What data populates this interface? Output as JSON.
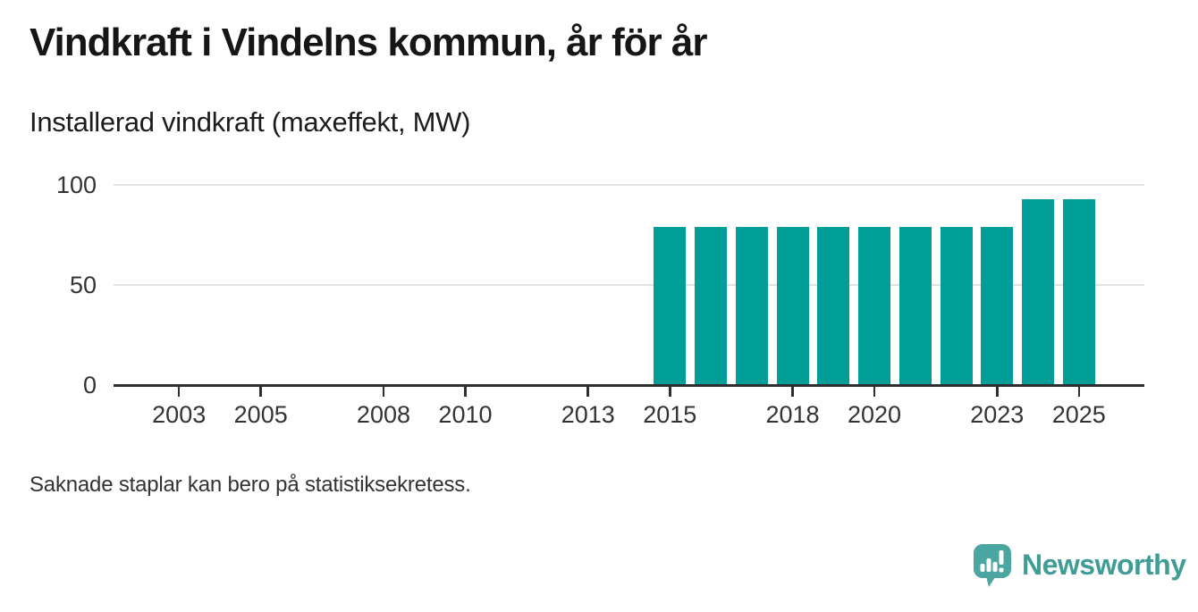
{
  "header": {
    "title": "Vindkraft i Vindelns kommun, år för år",
    "subtitle": "Installerad vindkraft (maxeffekt, MW)"
  },
  "footer": {
    "note": "Saknade staplar kan bero på statistiksekretess."
  },
  "branding": {
    "name": "Newsworthy",
    "icon": "speech-bubble-bar-chart-icon",
    "icon_color": "#4ba5a0",
    "wordmark_color": "#3f9d96"
  },
  "chart_data": {
    "type": "bar",
    "title": "Vindkraft i Vindelns kommun, år för år",
    "subtitle": "Installerad vindkraft (maxeffekt, MW)",
    "xlabel": "",
    "ylabel": "Installerad vindkraft (maxeffekt, MW)",
    "unit": "MW",
    "categories": [
      2015,
      2016,
      2017,
      2018,
      2019,
      2020,
      2021,
      2022,
      2023,
      2024,
      2025
    ],
    "values": [
      79,
      79,
      79,
      79,
      79,
      79,
      79,
      79,
      79,
      93,
      93
    ],
    "x_domain": [
      2001.4,
      2026.6
    ],
    "x_ticks": [
      2003,
      2005,
      2008,
      2010,
      2013,
      2015,
      2018,
      2020,
      2023,
      2025
    ],
    "y_ticks": [
      0,
      50,
      100
    ],
    "ylim": [
      0,
      100
    ],
    "grid": "horizontal",
    "legend": "none",
    "bar_color": "#009e96",
    "axis_color": "#2f2f2f",
    "grid_color": "#e2e2e2",
    "annotation": "Saknade staplar kan bero på statistiksekretess."
  }
}
